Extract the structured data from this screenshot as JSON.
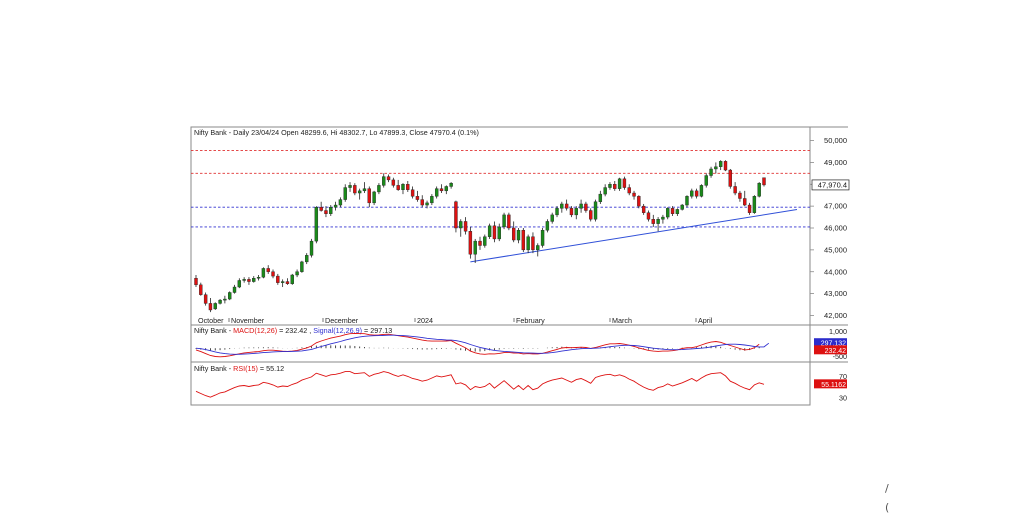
{
  "header": {
    "title": "Nifty Bank - Daily 23/04/24 Open 48299.6, Hi 48302.7, Lo 47899.3, Close 47970.4 (0.1%)"
  },
  "colors": {
    "up": "#1a8a1a",
    "down": "#dd1111",
    "wick": "#222222",
    "red_level": "#e03030",
    "blue_level": "#3030d0",
    "trendline": "#3050d8",
    "macd": "#dd1111",
    "signal": "#3030d0",
    "rsi": "#dd1111"
  },
  "chart_data": [
    {
      "type": "candlestick",
      "title": "Nifty Bank - Daily 23/04/24 Open 48299.6, Hi 48302.7, Lo 47899.3, Close 47970.4 (0.1%)",
      "x_labels": [
        "October",
        "November",
        "December",
        "2024",
        "February",
        "March",
        "April"
      ],
      "y_ticks": [
        42000,
        43000,
        44000,
        45000,
        46000,
        47000,
        48000,
        49000,
        50000
      ],
      "y_tick_labels": [
        "42,000",
        "43,000",
        "44,000",
        "45,000",
        "46,000",
        "47,000",
        "48,000",
        "49,000",
        "50,000"
      ],
      "ylim": [
        41700,
        50300
      ],
      "last_price_label": "47,970.4",
      "last_price": 47970.4,
      "horizontal_levels": [
        {
          "value": 49550,
          "color": "red",
          "style": "dashed"
        },
        {
          "value": 48500,
          "color": "red",
          "style": "dashed"
        },
        {
          "value": 46950,
          "color": "blue",
          "style": "dashed"
        },
        {
          "value": 46050,
          "color": "blue",
          "style": "dashed"
        }
      ],
      "trendline": {
        "from": {
          "index": 57,
          "value": 44450
        },
        "to": {
          "index": 125,
          "value": 46850
        }
      },
      "ohlc": [
        [
          43700,
          43850,
          43300,
          43400
        ],
        [
          43400,
          43500,
          42900,
          42950
        ],
        [
          42950,
          43050,
          42450,
          42550
        ],
        [
          42550,
          42800,
          42150,
          42250
        ],
        [
          42300,
          42600,
          42250,
          42550
        ],
        [
          42550,
          42750,
          42500,
          42700
        ],
        [
          42700,
          42900,
          42550,
          42750
        ],
        [
          42750,
          43100,
          42700,
          43050
        ],
        [
          43050,
          43400,
          43000,
          43300
        ],
        [
          43300,
          43700,
          43250,
          43600
        ],
        [
          43600,
          43750,
          43500,
          43650
        ],
        [
          43650,
          43750,
          43400,
          43550
        ],
        [
          43550,
          43800,
          43500,
          43700
        ],
        [
          43700,
          43850,
          43600,
          43750
        ],
        [
          43750,
          44200,
          43700,
          44150
        ],
        [
          44150,
          44300,
          43900,
          44000
        ],
        [
          44000,
          44100,
          43700,
          43800
        ],
        [
          43800,
          43900,
          43400,
          43500
        ],
        [
          43500,
          43650,
          43300,
          43550
        ],
        [
          43550,
          43700,
          43400,
          43450
        ],
        [
          43450,
          43900,
          43400,
          43850
        ],
        [
          43850,
          44100,
          43750,
          44000
        ],
        [
          44000,
          44500,
          43950,
          44450
        ],
        [
          44450,
          44850,
          44350,
          44750
        ],
        [
          44750,
          45500,
          44650,
          45400
        ],
        [
          45400,
          47000,
          45300,
          46950
        ],
        [
          46950,
          47200,
          46750,
          46800
        ],
        [
          46800,
          47000,
          46500,
          46650
        ],
        [
          46650,
          47050,
          46550,
          46950
        ],
        [
          46950,
          47200,
          46800,
          47050
        ],
        [
          47050,
          47400,
          46950,
          47300
        ],
        [
          47300,
          48000,
          47200,
          47850
        ],
        [
          47850,
          48100,
          47650,
          47950
        ],
        [
          47950,
          48050,
          47500,
          47600
        ],
        [
          47600,
          47800,
          47300,
          47700
        ],
        [
          47700,
          48100,
          47600,
          47800
        ],
        [
          47800,
          47900,
          46950,
          47150
        ],
        [
          47150,
          47700,
          47050,
          47650
        ],
        [
          47650,
          48050,
          47550,
          47950
        ],
        [
          47950,
          48500,
          47850,
          48350
        ],
        [
          48350,
          48450,
          48100,
          48200
        ],
        [
          48200,
          48300,
          47850,
          47950
        ],
        [
          47950,
          48200,
          47700,
          47750
        ],
        [
          47750,
          48050,
          47550,
          48000
        ],
        [
          48000,
          48150,
          47650,
          47750
        ],
        [
          47750,
          47900,
          47350,
          47450
        ],
        [
          47450,
          47700,
          47200,
          47300
        ],
        [
          47300,
          47500,
          46950,
          47050
        ],
        [
          47050,
          47250,
          46900,
          47150
        ],
        [
          47150,
          47550,
          47050,
          47450
        ],
        [
          47450,
          47900,
          47350,
          47800
        ],
        [
          47800,
          48000,
          47600,
          47700
        ],
        [
          47700,
          47950,
          47550,
          47900
        ],
        [
          47900,
          48100,
          47800,
          48050
        ],
        [
          47200,
          47250,
          45800,
          46000
        ],
        [
          46000,
          46400,
          45600,
          46300
        ],
        [
          46300,
          46500,
          45700,
          45850
        ],
        [
          45850,
          46050,
          44600,
          44800
        ],
        [
          44800,
          45500,
          44400,
          45400
        ],
        [
          45400,
          45600,
          45000,
          45200
        ],
        [
          45200,
          45700,
          45100,
          45600
        ],
        [
          45600,
          46200,
          45500,
          46100
        ],
        [
          46100,
          46300,
          45350,
          45500
        ],
        [
          45500,
          46200,
          45400,
          46050
        ],
        [
          46050,
          46700,
          45950,
          46600
        ],
        [
          46600,
          46700,
          45900,
          46000
        ],
        [
          46000,
          46300,
          45350,
          45450
        ],
        [
          45450,
          46000,
          45300,
          45900
        ],
        [
          45900,
          46000,
          44900,
          45000
        ],
        [
          45000,
          45700,
          44850,
          45600
        ],
        [
          45600,
          45800,
          44850,
          45000
        ],
        [
          45000,
          45300,
          44700,
          45200
        ],
        [
          45200,
          46000,
          45100,
          45900
        ],
        [
          45900,
          46400,
          45800,
          46300
        ],
        [
          46300,
          46700,
          46200,
          46600
        ],
        [
          46600,
          47000,
          46500,
          46900
        ],
        [
          46900,
          47200,
          46700,
          47100
        ],
        [
          47100,
          47300,
          46800,
          46900
        ],
        [
          46900,
          47000,
          46500,
          46600
        ],
        [
          46600,
          47000,
          46400,
          46900
        ],
        [
          46900,
          47300,
          46700,
          47100
        ],
        [
          47100,
          47200,
          46700,
          46800
        ],
        [
          46800,
          46900,
          46300,
          46400
        ],
        [
          46400,
          47300,
          46300,
          47200
        ],
        [
          47200,
          47700,
          47100,
          47550
        ],
        [
          47550,
          48000,
          47450,
          47850
        ],
        [
          47850,
          48100,
          47750,
          48000
        ],
        [
          48000,
          48150,
          47700,
          47800
        ],
        [
          47800,
          48300,
          47700,
          48250
        ],
        [
          48250,
          48350,
          47750,
          47850
        ],
        [
          47850,
          48000,
          47500,
          47600
        ],
        [
          47600,
          47700,
          47300,
          47450
        ],
        [
          47450,
          47500,
          46900,
          47000
        ],
        [
          47000,
          47100,
          46600,
          46700
        ],
        [
          46700,
          46800,
          46300,
          46400
        ],
        [
          46400,
          46600,
          46050,
          46200
        ],
        [
          46200,
          46500,
          45850,
          46400
        ],
        [
          46400,
          46600,
          46200,
          46500
        ],
        [
          46500,
          46950,
          46400,
          46900
        ],
        [
          46900,
          47000,
          46550,
          46650
        ],
        [
          46650,
          46900,
          46550,
          46850
        ],
        [
          46850,
          47100,
          46800,
          47050
        ],
        [
          47050,
          47500,
          46950,
          47450
        ],
        [
          47450,
          47800,
          47350,
          47700
        ],
        [
          47700,
          47800,
          47350,
          47450
        ],
        [
          47450,
          48000,
          47400,
          47950
        ],
        [
          47950,
          48500,
          47850,
          48400
        ],
        [
          48400,
          48800,
          48300,
          48700
        ],
        [
          48700,
          49000,
          48500,
          48800
        ],
        [
          48800,
          49100,
          48650,
          49050
        ],
        [
          49050,
          49100,
          48600,
          48650
        ],
        [
          48650,
          48700,
          47800,
          47900
        ],
        [
          47900,
          48100,
          47500,
          47600
        ],
        [
          47600,
          47700,
          47200,
          47350
        ],
        [
          47350,
          47700,
          47000,
          47050
        ],
        [
          47050,
          47150,
          46600,
          46700
        ],
        [
          46700,
          47500,
          46650,
          47450
        ],
        [
          47450,
          48100,
          47400,
          48050
        ],
        [
          48299.6,
          48302.7,
          47899.3,
          47970.4
        ]
      ]
    },
    {
      "type": "line",
      "title": "Nifty Bank - MACD(12,26) = 232.42, Signal(12,26,9) = 297.13",
      "legend": {
        "name": "Nifty Bank",
        "macd": "MACD(12,26)",
        "macd_value": "232.42",
        "signal": "Signal(12,26,9)",
        "signal_value": "297.13"
      },
      "y_tick_labels": [
        "1,000",
        "-500"
      ],
      "y_ticks": [
        1000,
        -500
      ],
      "ylim": [
        -700,
        1200
      ],
      "value_labels": [
        "297.132",
        "232.42"
      ],
      "series": [
        {
          "name": "MACD(12,26)",
          "values": [
            -100,
            -200,
            -320,
            -430,
            -490,
            -510,
            -490,
            -450,
            -390,
            -330,
            -280,
            -250,
            -220,
            -200,
            -150,
            -120,
            -120,
            -150,
            -180,
            -190,
            -170,
            -130,
            -60,
            20,
            130,
            320,
            430,
            520,
            600,
            660,
            720,
            800,
            860,
            880,
            870,
            860,
            800,
            780,
            790,
            820,
            830,
            790,
            740,
            700,
            660,
            600,
            540,
            480,
            440,
            420,
            420,
            420,
            430,
            450,
            300,
            160,
            20,
            -170,
            -270,
            -340,
            -360,
            -330,
            -340,
            -310,
            -260,
            -250,
            -290,
            -290,
            -340,
            -320,
            -340,
            -340,
            -300,
            -230,
            -150,
            -70,
            10,
            40,
            30,
            40,
            60,
            40,
            -10,
            40,
            120,
            200,
            260,
            260,
            280,
            240,
            180,
            110,
            20,
            -60,
            -130,
            -170,
            -190,
            -170,
            -170,
            -150,
            -100,
            -20,
            30,
            30,
            90,
            190,
            290,
            360,
            400,
            350,
            250,
            160,
            70,
            -20,
            -100,
            -70,
            30,
            232.42
          ]
        },
        {
          "name": "Signal(12,26,9)",
          "values": [
            0,
            -30,
            -80,
            -150,
            -220,
            -280,
            -320,
            -350,
            -360,
            -360,
            -350,
            -330,
            -310,
            -290,
            -260,
            -240,
            -220,
            -210,
            -200,
            -200,
            -190,
            -180,
            -160,
            -120,
            -70,
            10,
            100,
            180,
            260,
            330,
            400,
            480,
            550,
            620,
            670,
            710,
            730,
            740,
            750,
            760,
            770,
            770,
            760,
            750,
            730,
            700,
            670,
            630,
            590,
            560,
            530,
            510,
            490,
            480,
            450,
            390,
            320,
            220,
            130,
            50,
            -20,
            -80,
            -130,
            -160,
            -190,
            -210,
            -230,
            -250,
            -270,
            -280,
            -290,
            -300,
            -300,
            -290,
            -260,
            -220,
            -170,
            -130,
            -90,
            -60,
            -30,
            -10,
            -10,
            0,
            20,
            50,
            90,
            120,
            150,
            170,
            170,
            160,
            130,
            90,
            40,
            0,
            -30,
            -60,
            -80,
            -90,
            -90,
            -80,
            -60,
            -40,
            -20,
            0,
            30,
            80,
            130,
            180,
            220,
            240,
            240,
            220,
            190,
            150,
            100,
            80,
            80,
            297.13
          ]
        }
      ],
      "histogram": true
    },
    {
      "type": "line",
      "title": "Nifty Bank - RSI(15) = 55.12",
      "legend": {
        "name": "Nifty Bank",
        "rsi": "RSI(15)",
        "rsi_value": "55.12"
      },
      "y_tick_labels": [
        "70",
        "30"
      ],
      "y_ticks": [
        70,
        30
      ],
      "ylim": [
        22,
        82
      ],
      "value_label": "55.1162",
      "series": [
        {
          "name": "RSI(15)",
          "values": [
            42,
            38,
            34,
            31,
            35,
            39,
            41,
            45,
            49,
            52,
            53,
            51,
            53,
            54,
            59,
            57,
            54,
            50,
            52,
            51,
            55,
            58,
            63,
            66,
            69,
            76,
            73,
            70,
            73,
            74,
            76,
            79,
            79,
            75,
            76,
            77,
            70,
            74,
            76,
            79,
            77,
            73,
            70,
            73,
            70,
            66,
            64,
            61,
            63,
            67,
            71,
            69,
            71,
            73,
            56,
            58,
            54,
            45,
            51,
            49,
            51,
            57,
            48,
            55,
            62,
            54,
            46,
            53,
            45,
            53,
            45,
            48,
            56,
            60,
            63,
            65,
            67,
            63,
            59,
            64,
            66,
            62,
            57,
            68,
            71,
            73,
            74,
            71,
            73,
            70,
            65,
            61,
            55,
            50,
            46,
            44,
            49,
            51,
            56,
            52,
            55,
            58,
            62,
            66,
            61,
            67,
            72,
            75,
            76,
            77,
            71,
            61,
            57,
            52,
            48,
            45,
            54,
            58,
            55.12
          ]
        }
      ]
    }
  ],
  "stray_marks": [
    "/",
    "("
  ]
}
